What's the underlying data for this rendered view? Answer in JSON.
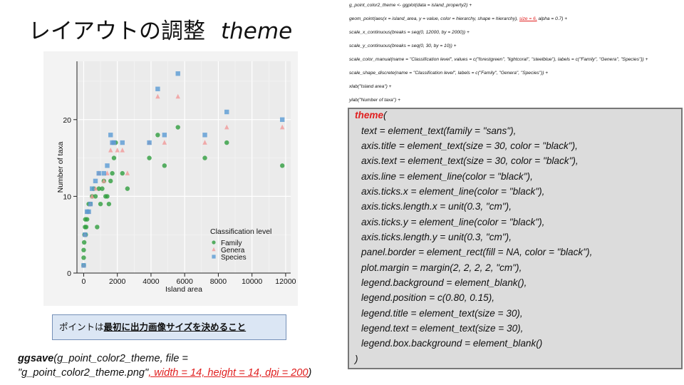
{
  "slide": {
    "title_jp": "レイアウトの調整",
    "title_en": "theme",
    "note_prefix": "ポイントは",
    "note_emph": "最初に出力画像サイズを決めること"
  },
  "ggsave": {
    "func": "ggsave",
    "line1_rest": "(g_point_color2_theme, file =",
    "line2_file": "\"g_point_color2_theme.png\"",
    "line2_red": ", width = 14, height = 14, dpi = 200",
    "line2_end": ")"
  },
  "code_small": {
    "lines": [
      "g_point_color2_theme <- ggplot(data = island_property2) +",
      "  geom_point(aes(x = island_area, y = value, color = hierarchy, shape = hierarchy), ",
      "  scale_x_continuous(breaks = seq(0, 12000, by = 2000)) +",
      "  scale_y_continuous(breaks = seq(0, 30, by = 10)) +",
      "  scale_color_manual(name = \"Classification level\", values = c(\"forestgreen\", \"lightcoral\", \"steelblue\"), labels = c(\"Family\", \"Genera\", \"Species\")) +",
      "  scale_shape_discrete(name = \"Classification level\", labels = c(\"Family\", \"Genera\", \"Species\")) +",
      "  xlab(\"Island area\") +",
      "  ylab(\"Number of taxa\") +"
    ],
    "geom_red": "size = 6,",
    "geom_tail": " alpha = 0.7) +"
  },
  "theme_code": {
    "open_kw": "theme",
    "open_paren": "(",
    "args": [
      "text = element_text(family = \"sans\"),",
      "axis.title = element_text(size = 30, color = \"black\"),",
      "axis.text = element_text(size = 30, color = \"black\"),",
      "axis.line = element_line(color = \"black\"),",
      "axis.ticks.x = element_line(color = \"black\"),",
      "axis.ticks.length.x = unit(0.3, \"cm\"),",
      "axis.ticks.y = element_line(color = \"black\"),",
      "axis.ticks.length.y = unit(0.3, \"cm\"),",
      "panel.border = element_rect(fill = NA, color = \"black\"),",
      "plot.margin = margin(2, 2, 2, 2, \"cm\"),",
      "legend.background = element_blank(),",
      "legend.position = c(0.80, 0.15),",
      "legend.title = element_text(size = 30),",
      "legend.text = element_text(size = 30),",
      "legend.box.background = element_blank()"
    ],
    "close": ")"
  },
  "chart_data": {
    "type": "scatter",
    "xlabel": "Island area",
    "ylabel": "Number of taxa",
    "xlim": [
      -400,
      12300
    ],
    "ylim": [
      0,
      27.6
    ],
    "x_ticks": [
      0,
      2000,
      4000,
      6000,
      8000,
      10000,
      12000
    ],
    "y_ticks": [
      0,
      10,
      20
    ],
    "grid": true,
    "legend_title": "Classification level",
    "legend_position": "bottom-right",
    "series": [
      {
        "name": "Family",
        "color": "#2f9e3f",
        "shape": "circle",
        "x": [
          0,
          0,
          0,
          30,
          50,
          80,
          100,
          120,
          150,
          200,
          250,
          300,
          400,
          500,
          600,
          700,
          800,
          900,
          1000,
          1100,
          1200,
          1300,
          1400,
          1500,
          1600,
          1700,
          1800,
          1900,
          2300,
          2600,
          3900,
          4400,
          4800,
          5600,
          7200,
          8500,
          11800
        ],
        "y": [
          1,
          2,
          3,
          4,
          5,
          6,
          7,
          5,
          6,
          7,
          8,
          9,
          9,
          10,
          11,
          10,
          6,
          11,
          9,
          11,
          12,
          10,
          10,
          9,
          12,
          13,
          15,
          17,
          13,
          11,
          15,
          18,
          14,
          19,
          15,
          17,
          14
        ]
      },
      {
        "name": "Genera",
        "color": "#f19a9a",
        "shape": "triangle",
        "x": [
          0,
          80,
          200,
          300,
          400,
          500,
          700,
          900,
          1200,
          1400,
          1600,
          1700,
          1800,
          2000,
          2300,
          2600,
          3900,
          4400,
          4800,
          5600,
          7200,
          8500,
          11800
        ],
        "y": [
          1,
          5,
          8,
          8,
          9,
          10,
          11,
          13,
          12,
          13,
          16,
          17,
          17,
          16,
          16,
          13,
          17,
          23,
          17,
          23,
          17,
          19,
          19
        ],
        "note": "Genera points overlap Family/Species at several locations"
      },
      {
        "name": "Species",
        "color": "#5a9bd5",
        "shape": "square",
        "x": [
          0,
          80,
          200,
          300,
          400,
          500,
          700,
          900,
          1200,
          1400,
          1600,
          1700,
          1800,
          2300,
          3900,
          4400,
          4800,
          5600,
          7200,
          8500,
          11800
        ],
        "y": [
          1,
          5,
          8,
          8,
          9,
          11,
          12,
          13,
          13,
          14,
          18,
          17,
          17,
          17,
          17,
          24,
          18,
          26,
          18,
          21,
          20
        ]
      }
    ]
  }
}
